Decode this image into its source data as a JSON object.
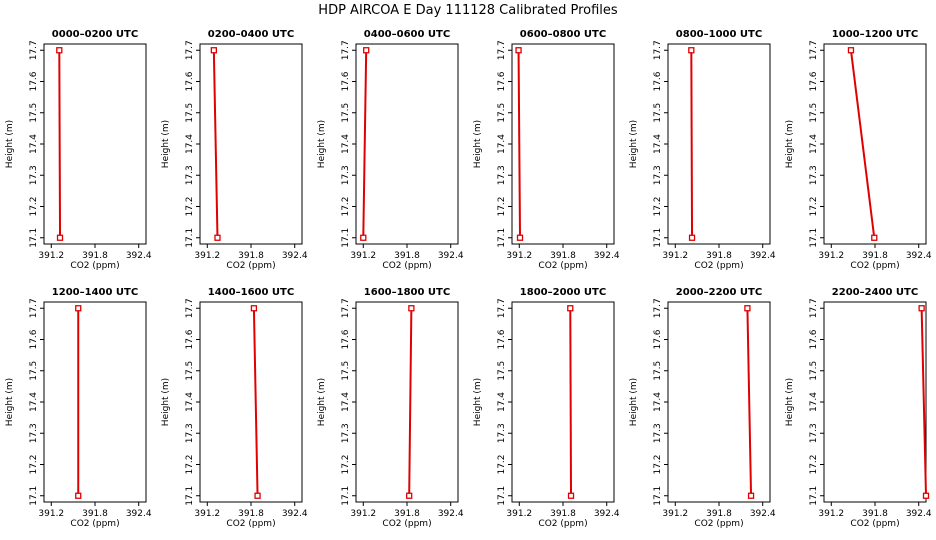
{
  "title": "HDP AIRCOA E  Day 111128  Calibrated Profiles",
  "colors": {
    "series": "#e00000",
    "frame": "#000000"
  },
  "chart_data": [
    {
      "type": "line",
      "title": "0000–0200 UTC",
      "xlabel": "CO2 (ppm)",
      "ylabel": "Height (m)",
      "xlim": [
        391.1,
        392.5
      ],
      "ylim": [
        17.08,
        17.72
      ],
      "xticks": [
        "391.2",
        "391.8",
        "392.4"
      ],
      "yticks": [
        "17.1",
        "17.2",
        "17.3",
        "17.4",
        "17.5",
        "17.6",
        "17.7"
      ],
      "points": [
        {
          "x": 391.32,
          "y": 17.1
        },
        {
          "x": 391.31,
          "y": 17.7
        }
      ]
    },
    {
      "type": "line",
      "title": "0200–0400 UTC",
      "xlabel": "CO2 (ppm)",
      "ylabel": "Height (m)",
      "xlim": [
        391.1,
        392.5
      ],
      "ylim": [
        17.08,
        17.72
      ],
      "xticks": [
        "391.2",
        "391.8",
        "392.4"
      ],
      "yticks": [
        "17.1",
        "17.2",
        "17.3",
        "17.4",
        "17.5",
        "17.6",
        "17.7"
      ],
      "points": [
        {
          "x": 391.34,
          "y": 17.1
        },
        {
          "x": 391.29,
          "y": 17.7
        }
      ]
    },
    {
      "type": "line",
      "title": "0400–0600 UTC",
      "xlabel": "CO2 (ppm)",
      "ylabel": "Height (m)",
      "xlim": [
        391.1,
        392.5
      ],
      "ylim": [
        17.08,
        17.72
      ],
      "xticks": [
        "391.2",
        "391.8",
        "392.4"
      ],
      "yticks": [
        "17.1",
        "17.2",
        "17.3",
        "17.4",
        "17.5",
        "17.6",
        "17.7"
      ],
      "points": [
        {
          "x": 391.2,
          "y": 17.1
        },
        {
          "x": 391.24,
          "y": 17.7
        }
      ]
    },
    {
      "type": "line",
      "title": "0600–0800 UTC",
      "xlabel": "CO2 (ppm)",
      "ylabel": "Height (m)",
      "xlim": [
        391.1,
        392.5
      ],
      "ylim": [
        17.08,
        17.72
      ],
      "xticks": [
        "391.2",
        "391.8",
        "392.4"
      ],
      "yticks": [
        "17.1",
        "17.2",
        "17.3",
        "17.4",
        "17.5",
        "17.6",
        "17.7"
      ],
      "points": [
        {
          "x": 391.21,
          "y": 17.1
        },
        {
          "x": 391.19,
          "y": 17.7
        }
      ]
    },
    {
      "type": "line",
      "title": "0800–1000 UTC",
      "xlabel": "CO2 (ppm)",
      "ylabel": "Height (m)",
      "xlim": [
        391.1,
        392.5
      ],
      "ylim": [
        17.08,
        17.72
      ],
      "xticks": [
        "391.2",
        "391.8",
        "392.4"
      ],
      "yticks": [
        "17.1",
        "17.2",
        "17.3",
        "17.4",
        "17.5",
        "17.6",
        "17.7"
      ],
      "points": [
        {
          "x": 391.43,
          "y": 17.1
        },
        {
          "x": 391.42,
          "y": 17.7
        }
      ]
    },
    {
      "type": "line",
      "title": "1000–1200 UTC",
      "xlabel": "CO2 (ppm)",
      "ylabel": "Height (m)",
      "xlim": [
        391.1,
        392.5
      ],
      "ylim": [
        17.08,
        17.72
      ],
      "xticks": [
        "391.2",
        "391.8",
        "392.4"
      ],
      "yticks": [
        "17.1",
        "17.2",
        "17.3",
        "17.4",
        "17.5",
        "17.6",
        "17.7"
      ],
      "points": [
        {
          "x": 391.79,
          "y": 17.1
        },
        {
          "x": 391.47,
          "y": 17.7
        }
      ]
    },
    {
      "type": "line",
      "title": "1200–1400 UTC",
      "xlabel": "CO2 (ppm)",
      "ylabel": "Height (m)",
      "xlim": [
        391.1,
        392.5
      ],
      "ylim": [
        17.08,
        17.72
      ],
      "xticks": [
        "391.2",
        "391.8",
        "392.4"
      ],
      "yticks": [
        "17.1",
        "17.2",
        "17.3",
        "17.4",
        "17.5",
        "17.6",
        "17.7"
      ],
      "points": [
        {
          "x": 391.57,
          "y": 17.1
        },
        {
          "x": 391.57,
          "y": 17.7
        }
      ]
    },
    {
      "type": "line",
      "title": "1400–1600 UTC",
      "xlabel": "CO2 (ppm)",
      "ylabel": "Height (m)",
      "xlim": [
        391.1,
        392.5
      ],
      "ylim": [
        17.08,
        17.72
      ],
      "xticks": [
        "391.2",
        "391.8",
        "392.4"
      ],
      "yticks": [
        "17.1",
        "17.2",
        "17.3",
        "17.4",
        "17.5",
        "17.6",
        "17.7"
      ],
      "points": [
        {
          "x": 391.89,
          "y": 17.1
        },
        {
          "x": 391.84,
          "y": 17.7
        }
      ]
    },
    {
      "type": "line",
      "title": "1600–1800 UTC",
      "xlabel": "CO2 (ppm)",
      "ylabel": "Height (m)",
      "xlim": [
        391.1,
        392.5
      ],
      "ylim": [
        17.08,
        17.72
      ],
      "xticks": [
        "391.2",
        "391.8",
        "392.4"
      ],
      "yticks": [
        "17.1",
        "17.2",
        "17.3",
        "17.4",
        "17.5",
        "17.6",
        "17.7"
      ],
      "points": [
        {
          "x": 391.83,
          "y": 17.1
        },
        {
          "x": 391.86,
          "y": 17.7
        }
      ]
    },
    {
      "type": "line",
      "title": "1800–2000 UTC",
      "xlabel": "CO2 (ppm)",
      "ylabel": "Height (m)",
      "xlim": [
        391.1,
        392.5
      ],
      "ylim": [
        17.08,
        17.72
      ],
      "xticks": [
        "391.2",
        "391.8",
        "392.4"
      ],
      "yticks": [
        "17.1",
        "17.2",
        "17.3",
        "17.4",
        "17.5",
        "17.6",
        "17.7"
      ],
      "points": [
        {
          "x": 391.91,
          "y": 17.1
        },
        {
          "x": 391.9,
          "y": 17.7
        }
      ]
    },
    {
      "type": "line",
      "title": "2000–2200 UTC",
      "xlabel": "CO2 (ppm)",
      "ylabel": "Height (m)",
      "xlim": [
        391.1,
        392.5
      ],
      "ylim": [
        17.08,
        17.72
      ],
      "xticks": [
        "391.2",
        "391.8",
        "392.4"
      ],
      "yticks": [
        "17.1",
        "17.2",
        "17.3",
        "17.4",
        "17.5",
        "17.6",
        "17.7"
      ],
      "points": [
        {
          "x": 392.24,
          "y": 17.1
        },
        {
          "x": 392.19,
          "y": 17.7
        }
      ]
    },
    {
      "type": "line",
      "title": "2200–2400 UTC",
      "xlabel": "CO2 (ppm)",
      "ylabel": "Height (m)",
      "xlim": [
        391.1,
        392.5
      ],
      "ylim": [
        17.08,
        17.72
      ],
      "xticks": [
        "391.2",
        "391.8",
        "392.4"
      ],
      "yticks": [
        "17.1",
        "17.2",
        "17.3",
        "17.4",
        "17.5",
        "17.6",
        "17.7"
      ],
      "points": [
        {
          "x": 392.5,
          "y": 17.1
        },
        {
          "x": 392.44,
          "y": 17.7
        }
      ]
    }
  ]
}
